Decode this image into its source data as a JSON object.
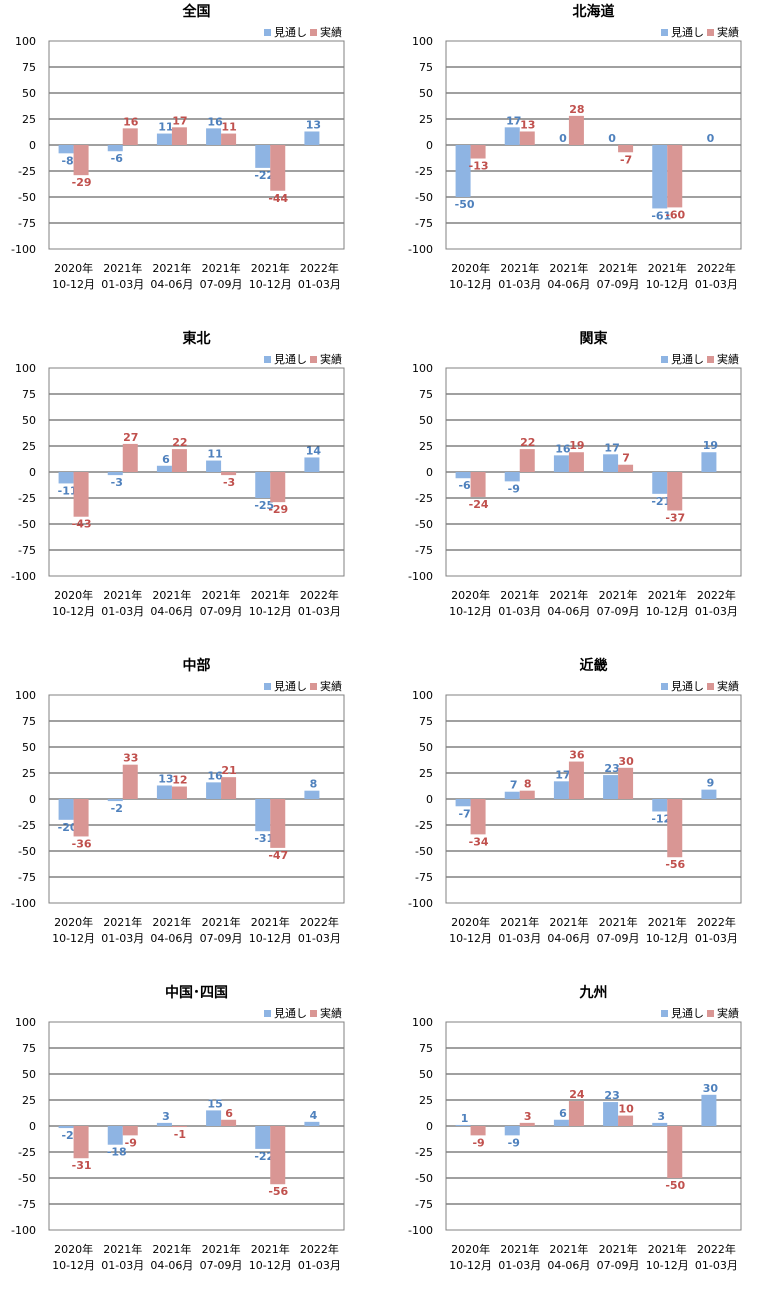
{
  "colors": {
    "forecast": "#8EB4E3",
    "actual": "#D99694",
    "forecast_label": "#4F81BD",
    "actual_label": "#C0504D",
    "grid": "#000000"
  },
  "chart_data": [
    {
      "type": "bar",
      "title": "全国",
      "categories": [
        [
          "2020年",
          "10-12月"
        ],
        [
          "2021年",
          "01-03月"
        ],
        [
          "2021年",
          "04-06月"
        ],
        [
          "2021年",
          "07-09月"
        ],
        [
          "2021年",
          "10-12月"
        ],
        [
          "2022年",
          "01-03月"
        ]
      ],
      "series": [
        {
          "name": "見通し",
          "values": [
            -8,
            -6,
            11,
            16,
            -22,
            13
          ]
        },
        {
          "name": "実績",
          "values": [
            -29,
            16,
            17,
            11,
            -44,
            null
          ]
        }
      ],
      "ylim": [
        -100,
        100
      ],
      "yticks": [
        100,
        75,
        50,
        25,
        0,
        -25,
        -50,
        -75,
        -100
      ],
      "grid": true,
      "legend": "top-right"
    },
    {
      "type": "bar",
      "title": "北海道",
      "categories": [
        [
          "2020年",
          "10-12月"
        ],
        [
          "2021年",
          "01-03月"
        ],
        [
          "2021年",
          "04-06月"
        ],
        [
          "2021年",
          "07-09月"
        ],
        [
          "2021年",
          "10-12月"
        ],
        [
          "2022年",
          "01-03月"
        ]
      ],
      "series": [
        {
          "name": "見通し",
          "values": [
            -50,
            17,
            0,
            0,
            -61,
            0
          ]
        },
        {
          "name": "実績",
          "values": [
            -13,
            13,
            28,
            -7,
            -60,
            null
          ]
        }
      ],
      "ylim": [
        -100,
        100
      ],
      "yticks": [
        100,
        75,
        50,
        25,
        0,
        -25,
        -50,
        -75,
        -100
      ],
      "grid": true,
      "legend": "top-right"
    },
    {
      "type": "bar",
      "title": "東北",
      "categories": [
        [
          "2020年",
          "10-12月"
        ],
        [
          "2021年",
          "01-03月"
        ],
        [
          "2021年",
          "04-06月"
        ],
        [
          "2021年",
          "07-09月"
        ],
        [
          "2021年",
          "10-12月"
        ],
        [
          "2022年",
          "01-03月"
        ]
      ],
      "series": [
        {
          "name": "見通し",
          "values": [
            -11,
            -3,
            6,
            11,
            -25,
            14
          ]
        },
        {
          "name": "実績",
          "values": [
            -43,
            27,
            22,
            -3,
            -29,
            null
          ]
        }
      ],
      "ylim": [
        -100,
        100
      ],
      "yticks": [
        100,
        75,
        50,
        25,
        0,
        -25,
        -50,
        -75,
        -100
      ],
      "grid": true,
      "legend": "top-right"
    },
    {
      "type": "bar",
      "title": "関東",
      "categories": [
        [
          "2020年",
          "10-12月"
        ],
        [
          "2021年",
          "01-03月"
        ],
        [
          "2021年",
          "04-06月"
        ],
        [
          "2021年",
          "07-09月"
        ],
        [
          "2021年",
          "10-12月"
        ],
        [
          "2022年",
          "01-03月"
        ]
      ],
      "series": [
        {
          "name": "見通し",
          "values": [
            -6,
            -9,
            16,
            17,
            -21,
            19
          ]
        },
        {
          "name": "実績",
          "values": [
            -24,
            22,
            19,
            7,
            -37,
            null
          ]
        }
      ],
      "ylim": [
        -100,
        100
      ],
      "yticks": [
        100,
        75,
        50,
        25,
        0,
        -25,
        -50,
        -75,
        -100
      ],
      "grid": true,
      "legend": "top-right"
    },
    {
      "type": "bar",
      "title": "中部",
      "categories": [
        [
          "2020年",
          "10-12月"
        ],
        [
          "2021年",
          "01-03月"
        ],
        [
          "2021年",
          "04-06月"
        ],
        [
          "2021年",
          "07-09月"
        ],
        [
          "2021年",
          "10-12月"
        ],
        [
          "2022年",
          "01-03月"
        ]
      ],
      "series": [
        {
          "name": "見通し",
          "values": [
            -20,
            -2,
            13,
            16,
            -31,
            8
          ]
        },
        {
          "name": "実績",
          "values": [
            -36,
            33,
            12,
            21,
            -47,
            null
          ]
        }
      ],
      "ylim": [
        -100,
        100
      ],
      "yticks": [
        100,
        75,
        50,
        25,
        0,
        -25,
        -50,
        -75,
        -100
      ],
      "grid": true,
      "legend": "top-right"
    },
    {
      "type": "bar",
      "title": "近畿",
      "categories": [
        [
          "2020年",
          "10-12月"
        ],
        [
          "2021年",
          "01-03月"
        ],
        [
          "2021年",
          "04-06月"
        ],
        [
          "2021年",
          "07-09月"
        ],
        [
          "2021年",
          "10-12月"
        ],
        [
          "2022年",
          "01-03月"
        ]
      ],
      "series": [
        {
          "name": "見通し",
          "values": [
            -7,
            7,
            17,
            23,
            -12,
            9
          ]
        },
        {
          "name": "実績",
          "values": [
            -34,
            8,
            36,
            30,
            -56,
            null
          ]
        }
      ],
      "ylim": [
        -100,
        100
      ],
      "yticks": [
        100,
        75,
        50,
        25,
        0,
        -25,
        -50,
        -75,
        -100
      ],
      "grid": true,
      "legend": "top-right"
    },
    {
      "type": "bar",
      "title": "中国･四国",
      "categories": [
        [
          "2020年",
          "10-12月"
        ],
        [
          "2021年",
          "01-03月"
        ],
        [
          "2021年",
          "04-06月"
        ],
        [
          "2021年",
          "07-09月"
        ],
        [
          "2021年",
          "10-12月"
        ],
        [
          "2022年",
          "01-03月"
        ]
      ],
      "series": [
        {
          "name": "見通し",
          "values": [
            -2,
            -18,
            3,
            15,
            -22,
            4
          ]
        },
        {
          "name": "実績",
          "values": [
            -31,
            -9,
            -1,
            6,
            -56,
            null
          ]
        }
      ],
      "ylim": [
        -100,
        100
      ],
      "yticks": [
        100,
        75,
        50,
        25,
        0,
        -25,
        -50,
        -75,
        -100
      ],
      "grid": true,
      "legend": "top-right"
    },
    {
      "type": "bar",
      "title": "九州",
      "categories": [
        [
          "2020年",
          "10-12月"
        ],
        [
          "2021年",
          "01-03月"
        ],
        [
          "2021年",
          "04-06月"
        ],
        [
          "2021年",
          "07-09月"
        ],
        [
          "2021年",
          "10-12月"
        ],
        [
          "2022年",
          "01-03月"
        ]
      ],
      "series": [
        {
          "name": "見通し",
          "values": [
            1,
            -9,
            6,
            23,
            3,
            30
          ]
        },
        {
          "name": "実績",
          "values": [
            -9,
            3,
            24,
            10,
            -50,
            null
          ]
        }
      ],
      "ylim": [
        -100,
        100
      ],
      "yticks": [
        100,
        75,
        50,
        25,
        0,
        -25,
        -50,
        -75,
        -100
      ],
      "grid": true,
      "legend": "top-right"
    }
  ]
}
